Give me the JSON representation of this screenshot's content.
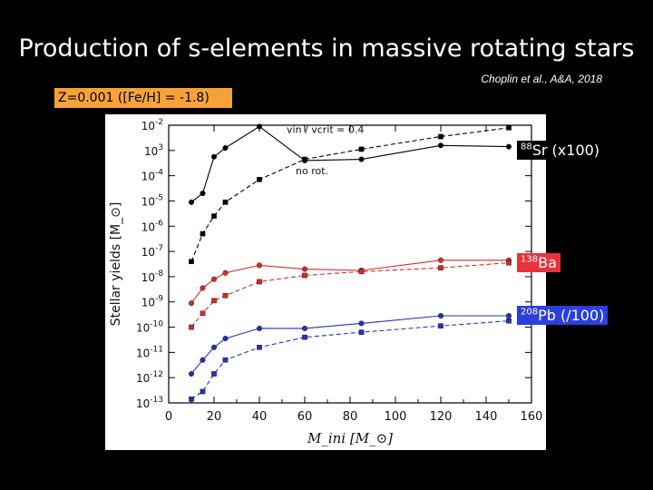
{
  "slide": {
    "title": "Production of s-elements in massive rotating stars",
    "citation": "Choplin et al., A&A, 2018",
    "metallicity": "Z=0.001   ([Fe/H] = -1.8)"
  },
  "labels": {
    "sr": {
      "mass": "88",
      "name": "Sr (x100)"
    },
    "ba": {
      "mass": "138",
      "name": "Ba"
    },
    "pb": {
      "mass": "208",
      "name": "Pb (/100)"
    }
  },
  "colors": {
    "sr": "#000000",
    "ba": "#d42a2a",
    "pb": "#2633b8",
    "ba_tag": "#e8333a",
    "pb_tag": "#2c3fdd",
    "metallicity_box": "#f5a23a"
  },
  "chart_data": {
    "type": "line",
    "title": "",
    "xlabel": "M_ini [M_⊙]",
    "ylabel": "Stellar yields [M_⊙]",
    "xlim": [
      0,
      160
    ],
    "ylim_log10": [
      -13,
      -2
    ],
    "xticks": [
      0,
      20,
      40,
      60,
      80,
      100,
      120,
      140,
      160
    ],
    "yticks": [
      "10-2",
      "10 3",
      "10-4",
      "10-5",
      "10-6",
      "10-7",
      "10-8",
      "10-9",
      "10-10",
      "10-11",
      "10-12",
      "10-13"
    ],
    "ytick_values": [
      -2,
      -3,
      -4,
      -5,
      -6,
      -7,
      -8,
      -9,
      -10,
      -11,
      -12,
      -13
    ],
    "annotations": {
      "rotating": "vin / vcrit = 0.4",
      "nonrotating": "no rot."
    },
    "series": [
      {
        "name": "Sr rotating",
        "element": "sr",
        "style": "solid",
        "marker": "circle",
        "x": [
          10,
          15,
          20,
          25,
          40,
          60,
          85,
          120,
          150
        ],
        "log10_y": [
          -5.05,
          -4.7,
          -3.25,
          -2.9,
          -2.05,
          -3.4,
          -3.35,
          -2.8,
          -2.85
        ]
      },
      {
        "name": "Sr non-rotating",
        "element": "sr",
        "style": "dashed",
        "marker": "square",
        "x": [
          10,
          15,
          20,
          25,
          40,
          60,
          85,
          120,
          150
        ],
        "log10_y": [
          -7.4,
          -6.3,
          -5.6,
          -5.05,
          -4.15,
          -3.35,
          -2.95,
          -2.45,
          -2.1
        ]
      },
      {
        "name": "Ba rotating",
        "element": "ba",
        "style": "solid",
        "marker": "circle",
        "x": [
          10,
          15,
          20,
          25,
          40,
          60,
          85,
          120,
          150
        ],
        "log10_y": [
          -9.05,
          -8.45,
          -8.1,
          -7.85,
          -7.55,
          -7.7,
          -7.75,
          -7.35,
          -7.35
        ]
      },
      {
        "name": "Ba non-rotating",
        "element": "ba",
        "style": "dashed",
        "marker": "square",
        "x": [
          10,
          15,
          20,
          25,
          40,
          60,
          85,
          120,
          150
        ],
        "log10_y": [
          -10.0,
          -9.45,
          -8.95,
          -8.75,
          -8.2,
          -7.95,
          -7.8,
          -7.65,
          -7.45
        ]
      },
      {
        "name": "Pb rotating",
        "element": "pb",
        "style": "solid",
        "marker": "circle",
        "x": [
          10,
          15,
          20,
          25,
          40,
          60,
          85,
          120,
          150
        ],
        "log10_y": [
          -11.85,
          -11.3,
          -10.8,
          -10.45,
          -10.05,
          -10.05,
          -9.85,
          -9.55,
          -9.55
        ]
      },
      {
        "name": "Pb non-rotating",
        "element": "pb",
        "style": "dashed",
        "marker": "square",
        "x": [
          10,
          15,
          20,
          25,
          40,
          60,
          85,
          120,
          150
        ],
        "log10_y": [
          -12.85,
          -12.55,
          -11.85,
          -11.3,
          -10.8,
          -10.4,
          -10.2,
          -9.95,
          -9.75
        ]
      }
    ]
  }
}
